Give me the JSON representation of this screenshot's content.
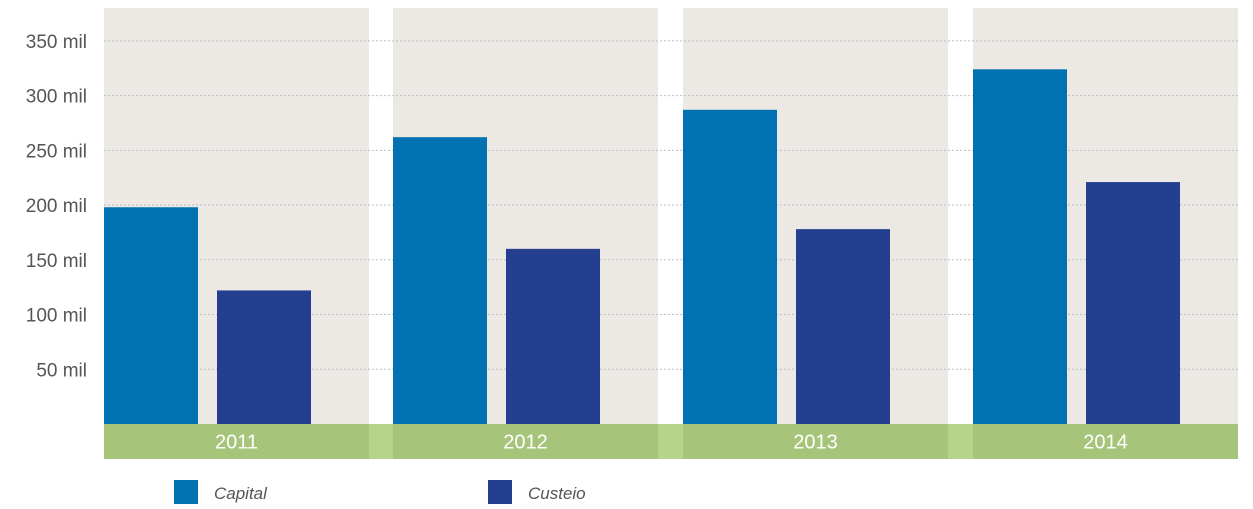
{
  "chart_data": {
    "type": "bar",
    "categories": [
      "2011",
      "2012",
      "2013",
      "2014"
    ],
    "series": [
      {
        "name": "Capital",
        "values": [
          198000,
          262000,
          287000,
          324000
        ]
      },
      {
        "name": "Custeio",
        "values": [
          122000,
          160000,
          178000,
          221000
        ]
      }
    ],
    "ylim": [
      0,
      380000
    ],
    "yticks": [
      {
        "value": 50000,
        "label": "50 mil"
      },
      {
        "value": 100000,
        "label": "100 mil"
      },
      {
        "value": 150000,
        "label": "150 mil"
      },
      {
        "value": 200000,
        "label": "200 mil"
      },
      {
        "value": 250000,
        "label": "250 mil"
      },
      {
        "value": 300000,
        "label": "300 mil"
      },
      {
        "value": 350000,
        "label": "350 mil"
      }
    ],
    "grid": true,
    "legend_position": "bottom-left",
    "colors": {
      "Capital": "#0072b2",
      "Custeio": "#243f8f",
      "plot_background": "#ece8e4",
      "category_band": "#a6c57a",
      "category_band_light": "#b7d48d",
      "grid_line": "#b9c0c7",
      "tick_text": "#555555",
      "legend_text": "#555555",
      "category_text": "#ffffff"
    }
  }
}
